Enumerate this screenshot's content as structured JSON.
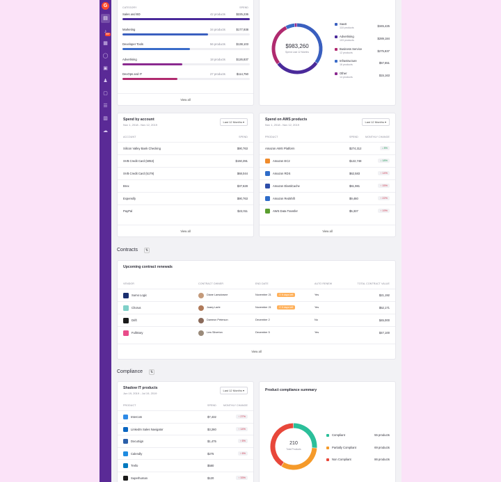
{
  "rail": {
    "logo": "G",
    "badge": "99+",
    "icons": [
      "dashboard-icon",
      "bell-icon",
      "grid-icon",
      "circle-icon",
      "clipboard-icon",
      "users-icon",
      "briefcase-icon",
      "list-icon",
      "table-icon",
      "cloud-icon"
    ]
  },
  "category_spend": {
    "headers": {
      "category": "CATEGORY",
      "spend": "SPEND"
    },
    "rows": [
      {
        "name": "Sales and BD",
        "products": "42 products",
        "spend": "$225,236",
        "fraction": 1.0,
        "color": "#4a2a9a"
      },
      {
        "name": "Marketing",
        "products": "34 products",
        "spend": "$177,938",
        "fraction": 0.67,
        "color": "#3a5fbf"
      },
      {
        "name": "Developer Tools",
        "products": "56 products",
        "spend": "$138,103",
        "fraction": 0.53,
        "color": "#3a6cc9"
      },
      {
        "name": "Advertising",
        "products": "18 products",
        "spend": "$126,837",
        "fraction": 0.47,
        "color": "#8a2a8f"
      },
      {
        "name": "DevOps and IT",
        "products": "27 products",
        "spend": "$114,750",
        "fraction": 0.43,
        "color": "#b02a6f"
      }
    ],
    "view_all": "View all"
  },
  "donut_spend": {
    "chart_data": {
      "type": "pie",
      "total": "$983,260",
      "subtitle": "Spend Last 12 Months",
      "categories": [
        "SaaS",
        "Advertising",
        "Business Service",
        "Infrastructure",
        "Other"
      ],
      "values": [
        345425,
        289184,
        275837,
        57651,
        15163
      ],
      "colors": [
        "#3a5fbf",
        "#4a2a9a",
        "#b02a6f",
        "#3a6cc9",
        "#8a2a8f"
      ],
      "legend_position": "right"
    },
    "legend": [
      {
        "name": "SaaS",
        "count": "118 products",
        "value": "$345,425"
      },
      {
        "name": "Advertising",
        "count": "103 products",
        "value": "$289,184"
      },
      {
        "name": "Business Service",
        "count": "12 products",
        "value": "$275,837"
      },
      {
        "name": "Infrastructure",
        "count": "16 products",
        "value": "$57,651"
      },
      {
        "name": "Other",
        "count": "14 products",
        "value": "$15,163"
      }
    ]
  },
  "spend_account": {
    "title": "Spend by account",
    "subtitle": "Nov 1, 2018 - Nov 12, 2019",
    "dropdown": "Last 12 Months",
    "headers": {
      "account": "ACCOUNT",
      "spend": "SPEND"
    },
    "rows": [
      {
        "name": "Silicon Valley Bank Checking",
        "spend": "$90,763"
      },
      {
        "name": "SVB Credit Card (5053)",
        "spend": "$150,391"
      },
      {
        "name": "SVB Credit Card (5179)",
        "spend": "$68,044"
      },
      {
        "name": "Brex",
        "spend": "$37,628"
      },
      {
        "name": "Expensify",
        "spend": "$90,763"
      },
      {
        "name": "PayPal",
        "spend": "$22,011"
      }
    ],
    "view_all": "View all"
  },
  "aws": {
    "title": "Spend on AWS products",
    "subtitle": "Nov 1, 2018 - Nov 12, 2019",
    "dropdown": "Last 12 Months",
    "headers": {
      "product": "PRODUCT",
      "spend": "SPEND",
      "change": "MONTHLY CHANGE"
    },
    "rows": [
      {
        "name": "Amazon AWS Platform",
        "spend": "$274,312",
        "change": "8%",
        "dir": "dn",
        "icon": "none",
        "color": ""
      },
      {
        "name": "Amazon EC2",
        "spend": "$122,748",
        "change": "18%",
        "dir": "dn",
        "icon": "ec2-icon",
        "color": "#f08b2b"
      },
      {
        "name": "Amazon RDS",
        "spend": "$62,583",
        "change": "14%",
        "dir": "up",
        "icon": "rds-icon",
        "color": "#2e6cc9"
      },
      {
        "name": "Amazon ElastiCache",
        "spend": "$61,981",
        "change": "15%",
        "dir": "up",
        "icon": "elasticache-icon",
        "color": "#2e4ea9"
      },
      {
        "name": "Amazon Redshift",
        "spend": "$9,460",
        "change": "22%",
        "dir": "up",
        "icon": "redshift-icon",
        "color": "#2e6cc9"
      },
      {
        "name": "AWS Data Transfer",
        "spend": "$5,337",
        "change": "19%",
        "dir": "up",
        "icon": "datatransfer-icon",
        "color": "#5a9e2f"
      }
    ],
    "view_all": "View all"
  },
  "contracts": {
    "section": "Contracts",
    "title": "Upcoming contract renewals",
    "headers": {
      "vendor": "VENDOR",
      "owner": "CONTRACT OWNER",
      "end": "END DATE",
      "auto": "AUTO RENEW",
      "value": "TOTAL CONTRACT VALUE"
    },
    "rows": [
      {
        "vendor": "Sumo Logic",
        "owner": "Diane Lansdowne",
        "end": "November 21",
        "warn": "9 days left",
        "auto": "Yes",
        "value": "$21,192",
        "vcolor": "#1a2f6f",
        "acolor": "#c49a7a"
      },
      {
        "vendor": "Chorus",
        "owner": "Joany Larle",
        "end": "November 21",
        "warn": "9 days left",
        "auto": "Yes",
        "value": "$52,171",
        "vcolor": "#7fd0c8",
        "acolor": "#b07a5a"
      },
      {
        "vendor": "Drift",
        "owner": "Dameon Peterson",
        "end": "December 2",
        "warn": "",
        "auto": "No",
        "value": "$45,000",
        "vcolor": "#1a1a1a",
        "acolor": "#8a6a5a"
      },
      {
        "vendor": "FullStory",
        "owner": "Lew Silverton",
        "end": "December 5",
        "warn": "",
        "auto": "Yes",
        "value": "$47,100",
        "vcolor": "#e94c8a",
        "acolor": "#9a8a7a"
      }
    ],
    "view_all": "View all"
  },
  "compliance": {
    "section": "Compliance",
    "shadow": {
      "title": "Shadow IT products",
      "subtitle": "Jun 19, 2019 - Jul 19, 2019",
      "dropdown": "Last 12 Months",
      "headers": {
        "product": "PRODUCT",
        "spend": "SPEND",
        "change": "MONTHLY CHANGE"
      },
      "rows": [
        {
          "name": "Intercom",
          "spend": "$7,432",
          "change": "27%",
          "color": "#2e8ae6"
        },
        {
          "name": "LinkedIn Sales Navigator",
          "spend": "$3,260",
          "change": "14%",
          "color": "#0a66c2"
        },
        {
          "name": "DocuSign",
          "spend": "$1,475",
          "change": "6%",
          "color": "#2b5fa9"
        },
        {
          "name": "Calendly",
          "spend": "$275",
          "change": "6%",
          "color": "#1f8be0"
        },
        {
          "name": "Trello",
          "spend": "$580",
          "change": "",
          "color": "#0079bf"
        },
        {
          "name": "Superhuman",
          "spend": "$120",
          "change": "33%",
          "color": "#1a1a1a"
        }
      ]
    },
    "summary": {
      "title": "Product compliance summary",
      "chart_data": {
        "type": "pie",
        "total": "210",
        "subtitle": "Total Products",
        "categories": [
          "Compliant",
          "Partially Compliant",
          "Non Compliant"
        ],
        "values": [
          55,
          69,
          86
        ],
        "colors": [
          "#2bbf9a",
          "#f59a2a",
          "#e8473a"
        ],
        "legend_position": "right"
      },
      "legend": [
        {
          "name": "Compliant",
          "value": "55 products"
        },
        {
          "name": "Partially Compliant",
          "value": "69 products"
        },
        {
          "name": "Non Compliant",
          "value": "86 products"
        }
      ]
    }
  }
}
